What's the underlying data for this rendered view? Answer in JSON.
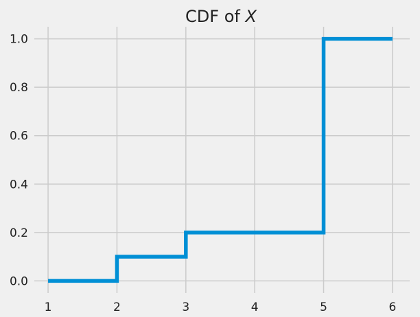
{
  "chart_data": {
    "type": "line",
    "drawstyle": "step-post",
    "title": "CDF of ",
    "title_variable": "X",
    "xlabel": "",
    "ylabel": "",
    "xlim": [
      0.8,
      6.25
    ],
    "ylim": [
      -0.05,
      1.05
    ],
    "xticks": [
      1,
      2,
      3,
      4,
      5,
      6
    ],
    "yticks": [
      0.0,
      0.2,
      0.4,
      0.6,
      0.8,
      1.0
    ],
    "xtick_labels": [
      "1",
      "2",
      "3",
      "4",
      "5",
      "6"
    ],
    "ytick_labels": [
      "0.0",
      "0.2",
      "0.4",
      "0.6",
      "0.8",
      "1.0"
    ],
    "grid": true,
    "series": [
      {
        "x": [
          1,
          2,
          3,
          4,
          5,
          6
        ],
        "y": [
          0.0,
          0.1,
          0.2,
          0.2,
          1.0,
          1.0
        ],
        "color": "#008fd5"
      }
    ]
  },
  "background_color": "#f0f0f0",
  "grid_color": "#cbcbcb"
}
